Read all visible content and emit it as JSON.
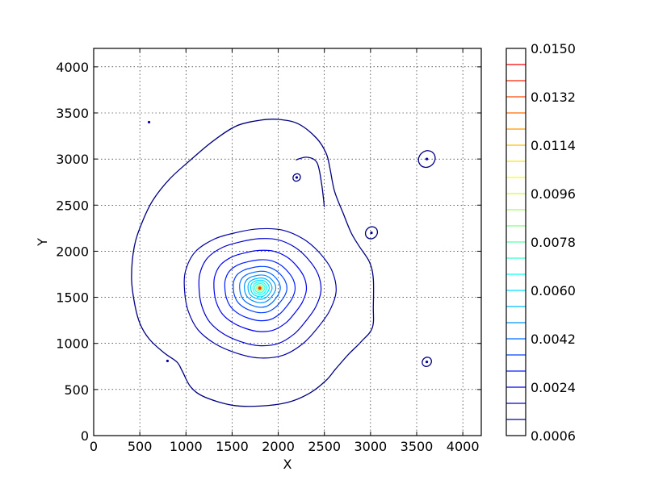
{
  "chart_data": {
    "type": "contour",
    "xlabel": "X",
    "ylabel": "Y",
    "xlim": [
      0,
      4200
    ],
    "ylim": [
      0,
      4200
    ],
    "xticks": [
      0,
      500,
      1000,
      1500,
      2000,
      2500,
      3000,
      3500,
      4000
    ],
    "yticks": [
      0,
      500,
      1000,
      1500,
      2000,
      2500,
      3000,
      3500,
      4000
    ],
    "grid": true,
    "colormap": "jet",
    "colorbar": {
      "min": 0.0006,
      "max": 0.015,
      "tick_labels": [
        "0.0150",
        "0.0132",
        "0.0114",
        "0.0096",
        "0.0078",
        "0.0060",
        "0.0042",
        "0.0024",
        "0.0006"
      ],
      "levels": [
        0.0006,
        0.0012,
        0.0018,
        0.0024,
        0.003,
        0.0036,
        0.0042,
        0.0048,
        0.0054,
        0.006,
        0.0066,
        0.0072,
        0.0078,
        0.0084,
        0.009,
        0.0096,
        0.0102,
        0.0108,
        0.0114,
        0.012,
        0.0126,
        0.0132,
        0.0138,
        0.0144,
        0.015
      ]
    },
    "peak": {
      "x": 1800,
      "y": 1600
    },
    "outer_contour": [
      [
        410,
        1720
      ],
      [
        440,
        2050
      ],
      [
        520,
        2300
      ],
      [
        640,
        2550
      ],
      [
        820,
        2780
      ],
      [
        1050,
        2990
      ],
      [
        1300,
        3200
      ],
      [
        1550,
        3360
      ],
      [
        1800,
        3420
      ],
      [
        2000,
        3430
      ],
      [
        2220,
        3380
      ],
      [
        2420,
        3220
      ],
      [
        2520,
        3060
      ],
      [
        2560,
        2900
      ],
      [
        2610,
        2650
      ],
      [
        2700,
        2420
      ],
      [
        2790,
        2200
      ],
      [
        2880,
        2050
      ],
      [
        2990,
        1880
      ],
      [
        3030,
        1700
      ],
      [
        3030,
        1400
      ],
      [
        3020,
        1170
      ],
      [
        2900,
        1020
      ],
      [
        2760,
        880
      ],
      [
        2620,
        720
      ],
      [
        2520,
        600
      ],
      [
        2340,
        460
      ],
      [
        2100,
        360
      ],
      [
        1800,
        320
      ],
      [
        1500,
        330
      ],
      [
        1200,
        420
      ],
      [
        1050,
        530
      ],
      [
        960,
        700
      ],
      [
        900,
        800
      ],
      [
        760,
        900
      ],
      [
        600,
        1050
      ],
      [
        500,
        1220
      ],
      [
        440,
        1450
      ]
    ],
    "notch_contour": [
      [
        2190,
        2990
      ],
      [
        2310,
        3020
      ],
      [
        2420,
        2960
      ],
      [
        2470,
        2730
      ],
      [
        2500,
        2480
      ]
    ],
    "mid_contours": [
      {
        "level": 0.0012,
        "rx": 820,
        "ry": 700,
        "cx": 1790,
        "cy": 1560
      },
      {
        "level": 0.0018,
        "rx": 660,
        "ry": 580,
        "cx": 1790,
        "cy": 1570
      },
      {
        "level": 0.0024,
        "rx": 500,
        "ry": 440,
        "cx": 1795,
        "cy": 1580
      },
      {
        "level": 0.003,
        "rx": 380,
        "ry": 330,
        "cx": 1795,
        "cy": 1585
      },
      {
        "level": 0.0036,
        "rx": 290,
        "ry": 250,
        "cx": 1798,
        "cy": 1590
      },
      {
        "level": 0.0042,
        "rx": 220,
        "ry": 195,
        "cx": 1798,
        "cy": 1592
      },
      {
        "level": 0.0048,
        "rx": 170,
        "ry": 150,
        "cx": 1800,
        "cy": 1595
      },
      {
        "level": 0.0054,
        "rx": 130,
        "ry": 115,
        "cx": 1800,
        "cy": 1597
      },
      {
        "level": 0.006,
        "rx": 100,
        "ry": 90,
        "cx": 1800,
        "cy": 1598
      },
      {
        "level": 0.0066,
        "rx": 75,
        "ry": 68,
        "cx": 1800,
        "cy": 1599
      },
      {
        "level": 0.0072,
        "rx": 55,
        "ry": 50,
        "cx": 1800,
        "cy": 1600
      },
      {
        "level": 0.0084,
        "rx": 35,
        "ry": 32,
        "cx": 1800,
        "cy": 1600
      },
      {
        "level": 0.0102,
        "rx": 18,
        "ry": 16,
        "cx": 1800,
        "cy": 1600
      },
      {
        "level": 0.012,
        "rx": 8,
        "ry": 8,
        "cx": 1800,
        "cy": 1600
      }
    ],
    "satellite_peaks": [
      {
        "x": 2200,
        "y": 2800,
        "r_outer": 40,
        "dot": true
      },
      {
        "x": 3010,
        "y": 2200,
        "r_outer": 65,
        "dot": true
      },
      {
        "x": 3610,
        "y": 3000,
        "r_outer": 90,
        "dot": true
      },
      {
        "x": 3610,
        "y": 800,
        "r_outer": 50,
        "dot": true
      },
      {
        "x": 600,
        "y": 3400,
        "r_outer": 0,
        "dot": true
      },
      {
        "x": 800,
        "y": 810,
        "r_outer": 0,
        "dot": true
      }
    ]
  }
}
